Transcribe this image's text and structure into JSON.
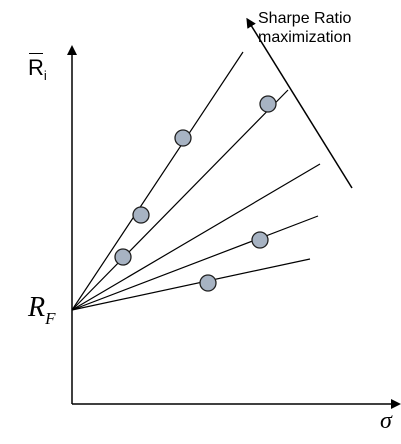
{
  "annotation": {
    "line1": "Sharpe Ratio",
    "line2": "maximization"
  },
  "axes": {
    "y_label_main": "R",
    "y_label_sub": "i",
    "x_label": "σ"
  },
  "intercept_label": {
    "main": "R",
    "sub": "F"
  },
  "colors": {
    "line": "#000000",
    "point_fill": "#a7b3c3",
    "point_stroke": "#1f1f1f",
    "background": "#ffffff"
  }
}
